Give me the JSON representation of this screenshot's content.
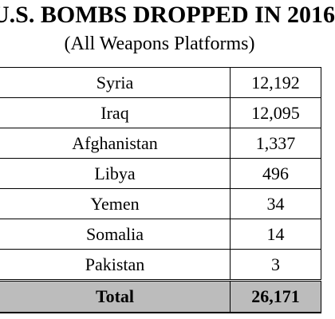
{
  "title": "U.S. BOMBS DROPPED IN 2016",
  "subtitle": "(All Weapons Platforms)",
  "table": {
    "rows": [
      {
        "country": "Syria",
        "count": "12,192"
      },
      {
        "country": "Iraq",
        "count": "12,095"
      },
      {
        "country": "Afghanistan",
        "count": "1,337"
      },
      {
        "country": "Libya",
        "count": "496"
      },
      {
        "country": "Yemen",
        "count": "34"
      },
      {
        "country": "Somalia",
        "count": "14"
      },
      {
        "country": "Pakistan",
        "count": "3"
      }
    ],
    "total": {
      "label": "Total",
      "count": "26,171"
    }
  },
  "colors": {
    "total_row_background": "#bcbcbc",
    "text": "#000000"
  }
}
